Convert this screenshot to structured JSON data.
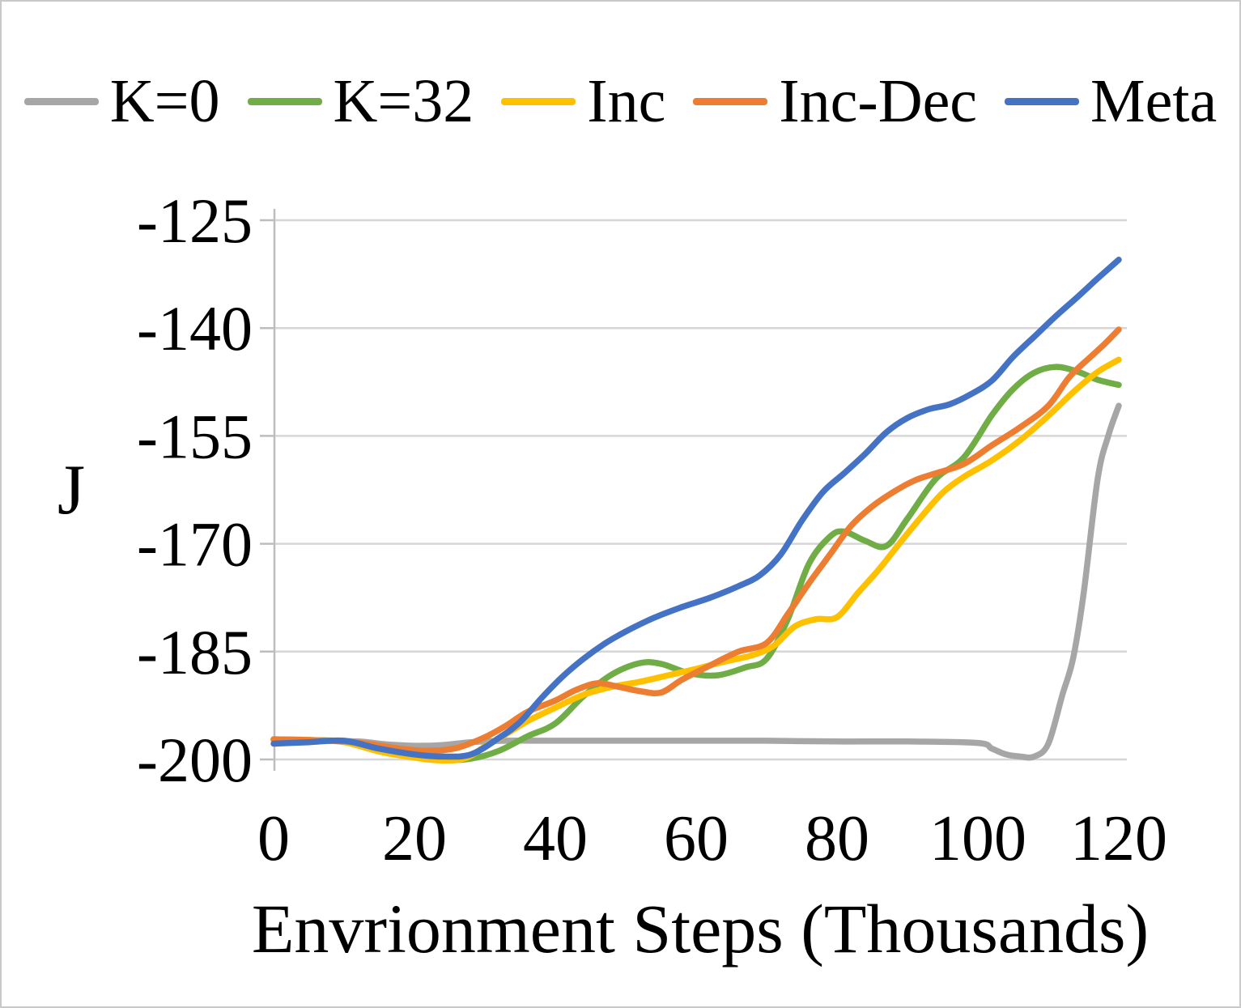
{
  "chart_data": {
    "type": "line",
    "title": "",
    "xlabel": "Envrionment Steps (Thousands)",
    "ylabel": "J",
    "xlim": [
      0,
      120
    ],
    "ylim": [
      -200,
      -125
    ],
    "xticks": [
      0,
      20,
      40,
      60,
      80,
      100,
      120
    ],
    "yticks": [
      -125,
      -140,
      -155,
      -170,
      -185,
      -200
    ],
    "grid": true,
    "legend_position": "top",
    "colors": {
      "grid": "#d6d6d6",
      "axis": "#bdbdbd",
      "text": "#000000",
      "background": "#ffffff",
      "border": "#c9c9c9"
    },
    "series": [
      {
        "name": "K=0",
        "color": "#a6a6a6",
        "points": [
          [
            0,
            -197.3
          ],
          [
            6,
            -197.4
          ],
          [
            12,
            -197.5
          ],
          [
            16,
            -197.9
          ],
          [
            20,
            -198.1
          ],
          [
            24,
            -198.0
          ],
          [
            28,
            -197.6
          ],
          [
            33,
            -197.4
          ],
          [
            40,
            -197.4
          ],
          [
            50,
            -197.4
          ],
          [
            60,
            -197.4
          ],
          [
            70,
            -197.4
          ],
          [
            80,
            -197.5
          ],
          [
            90,
            -197.5
          ],
          [
            100,
            -197.7
          ],
          [
            102,
            -198.5
          ],
          [
            104,
            -199.3
          ],
          [
            106,
            -199.6
          ],
          [
            108,
            -199.6
          ],
          [
            110,
            -197.8
          ],
          [
            112,
            -191.0
          ],
          [
            113.5,
            -186.0
          ],
          [
            115,
            -177.0
          ],
          [
            117,
            -161.0
          ],
          [
            118.5,
            -155.0
          ],
          [
            120,
            -150.8
          ]
        ]
      },
      {
        "name": "K=32",
        "color": "#70ad47",
        "points": [
          [
            0,
            -197.2
          ],
          [
            5,
            -197.3
          ],
          [
            10,
            -197.5
          ],
          [
            15,
            -198.6
          ],
          [
            20,
            -199.7
          ],
          [
            24,
            -200.1
          ],
          [
            28,
            -199.9
          ],
          [
            32,
            -198.8
          ],
          [
            36,
            -196.8
          ],
          [
            40,
            -195.0
          ],
          [
            44,
            -191.2
          ],
          [
            48,
            -188.2
          ],
          [
            52,
            -186.6
          ],
          [
            55,
            -186.7
          ],
          [
            59,
            -188.0
          ],
          [
            63,
            -188.3
          ],
          [
            67,
            -187.2
          ],
          [
            70,
            -186.0
          ],
          [
            73,
            -180.5
          ],
          [
            76,
            -172.8
          ],
          [
            79,
            -169.0
          ],
          [
            81,
            -168.3
          ],
          [
            84,
            -169.6
          ],
          [
            87,
            -170.3
          ],
          [
            90,
            -166.5
          ],
          [
            94,
            -161.0
          ],
          [
            98,
            -158.0
          ],
          [
            102,
            -152.1
          ],
          [
            105,
            -148.5
          ],
          [
            108,
            -146.2
          ],
          [
            111,
            -145.4
          ],
          [
            114,
            -146.0
          ],
          [
            117,
            -147.2
          ],
          [
            120,
            -147.9
          ]
        ]
      },
      {
        "name": "Inc",
        "color": "#ffc000",
        "points": [
          [
            0,
            -197.2
          ],
          [
            5,
            -197.3
          ],
          [
            10,
            -197.6
          ],
          [
            15,
            -198.9
          ],
          [
            19,
            -199.6
          ],
          [
            23,
            -200.1
          ],
          [
            27,
            -199.9
          ],
          [
            30,
            -198.2
          ],
          [
            33,
            -196.5
          ],
          [
            36,
            -194.7
          ],
          [
            40,
            -192.8
          ],
          [
            44,
            -191.0
          ],
          [
            48,
            -189.9
          ],
          [
            52,
            -189.2
          ],
          [
            56,
            -188.3
          ],
          [
            60,
            -187.4
          ],
          [
            64,
            -186.4
          ],
          [
            68,
            -185.5
          ],
          [
            71,
            -184.2
          ],
          [
            74,
            -181.5
          ],
          [
            77,
            -180.5
          ],
          [
            80,
            -180.2
          ],
          [
            83,
            -176.8
          ],
          [
            86,
            -173.5
          ],
          [
            89,
            -169.8
          ],
          [
            92,
            -166.2
          ],
          [
            95,
            -162.9
          ],
          [
            98,
            -160.7
          ],
          [
            102,
            -158.4
          ],
          [
            106,
            -155.6
          ],
          [
            110,
            -152.2
          ],
          [
            114,
            -148.5
          ],
          [
            117,
            -146.1
          ],
          [
            120,
            -144.4
          ]
        ]
      },
      {
        "name": "Inc-Dec",
        "color": "#ed7d31",
        "points": [
          [
            0,
            -197.2
          ],
          [
            5,
            -197.3
          ],
          [
            10,
            -197.5
          ],
          [
            14,
            -197.9
          ],
          [
            18,
            -198.5
          ],
          [
            22,
            -198.8
          ],
          [
            26,
            -198.4
          ],
          [
            30,
            -196.9
          ],
          [
            33,
            -195.3
          ],
          [
            36,
            -193.4
          ],
          [
            40,
            -191.8
          ],
          [
            43,
            -190.3
          ],
          [
            46,
            -189.4
          ],
          [
            49,
            -189.9
          ],
          [
            52,
            -190.5
          ],
          [
            55,
            -190.7
          ],
          [
            58,
            -188.9
          ],
          [
            62,
            -186.9
          ],
          [
            66,
            -185.0
          ],
          [
            70,
            -183.8
          ],
          [
            73,
            -179.8
          ],
          [
            76,
            -175.5
          ],
          [
            79,
            -171.5
          ],
          [
            82,
            -167.5
          ],
          [
            85,
            -164.8
          ],
          [
            88,
            -162.8
          ],
          [
            91,
            -161.2
          ],
          [
            94,
            -160.2
          ],
          [
            98,
            -158.9
          ],
          [
            102,
            -156.3
          ],
          [
            106,
            -153.8
          ],
          [
            110,
            -150.8
          ],
          [
            113,
            -146.8
          ],
          [
            116,
            -144.0
          ],
          [
            118,
            -142.2
          ],
          [
            120,
            -140.2
          ]
        ]
      },
      {
        "name": "Meta",
        "color": "#4472c4",
        "points": [
          [
            0,
            -197.8
          ],
          [
            5,
            -197.6
          ],
          [
            10,
            -197.4
          ],
          [
            15,
            -198.5
          ],
          [
            20,
            -199.3
          ],
          [
            24,
            -199.6
          ],
          [
            28,
            -199.3
          ],
          [
            32,
            -197.0
          ],
          [
            35,
            -194.8
          ],
          [
            38,
            -191.5
          ],
          [
            41,
            -188.5
          ],
          [
            44,
            -186.0
          ],
          [
            47,
            -183.9
          ],
          [
            50,
            -182.2
          ],
          [
            54,
            -180.3
          ],
          [
            58,
            -178.8
          ],
          [
            62,
            -177.5
          ],
          [
            66,
            -175.9
          ],
          [
            69,
            -174.4
          ],
          [
            72,
            -171.5
          ],
          [
            75,
            -166.8
          ],
          [
            78,
            -162.8
          ],
          [
            81,
            -160.2
          ],
          [
            84,
            -157.5
          ],
          [
            87,
            -154.5
          ],
          [
            90,
            -152.5
          ],
          [
            93,
            -151.3
          ],
          [
            96,
            -150.6
          ],
          [
            99,
            -149.2
          ],
          [
            102,
            -147.3
          ],
          [
            105,
            -144.0
          ],
          [
            108,
            -141.2
          ],
          [
            111,
            -138.4
          ],
          [
            114,
            -135.8
          ],
          [
            117,
            -133.1
          ],
          [
            120,
            -130.5
          ]
        ]
      }
    ]
  }
}
